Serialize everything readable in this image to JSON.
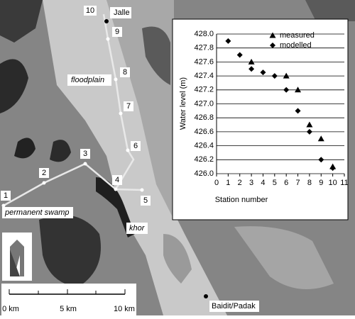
{
  "map": {
    "stations": [
      "1",
      "2",
      "3",
      "4",
      "5",
      "6",
      "7",
      "8",
      "9",
      "10"
    ],
    "places": [
      "Jalle",
      "floodplain",
      "permanent swamp",
      "khor",
      "Baidit/Padak"
    ],
    "scale": [
      "0 km",
      "5 km",
      "10 km"
    ]
  },
  "chart_data": {
    "type": "scatter",
    "x_label": "Station number",
    "y_label": "Water level (m)",
    "series": [
      {
        "name": "measured",
        "marker": "triangle",
        "color": "#000000",
        "x": [
          3,
          6,
          7,
          8,
          9,
          10
        ],
        "values": [
          427.6,
          427.4,
          427.2,
          426.7,
          426.5,
          426.1
        ]
      },
      {
        "name": "modelled",
        "marker": "diamond",
        "color": "#000000",
        "x": [
          1,
          2,
          3,
          4,
          5,
          6,
          7,
          8,
          9,
          10
        ],
        "values": [
          427.9,
          427.7,
          427.5,
          427.45,
          427.4,
          427.2,
          426.9,
          426.6,
          426.2,
          426.08
        ]
      }
    ],
    "xlim": [
      0,
      11
    ],
    "xticks": [
      0,
      1,
      2,
      3,
      4,
      5,
      6,
      7,
      8,
      9,
      10,
      11
    ],
    "ylim": [
      426.0,
      428.0
    ],
    "yticks": [
      {
        "value": 426.0,
        "label": "426.0"
      },
      {
        "value": 426.2,
        "label": "426.2"
      },
      {
        "value": 426.4,
        "label": "426.4"
      },
      {
        "value": 426.6,
        "label": "426.6"
      },
      {
        "value": 426.8,
        "label": "426.8"
      },
      {
        "value": 427.0,
        "label": "427.0"
      },
      {
        "value": 427.2,
        "label": "427.2"
      },
      {
        "value": 427.4,
        "label": "427.4"
      },
      {
        "value": 427.6,
        "label": "427.6"
      },
      {
        "value": 427.8,
        "label": "427.8"
      },
      {
        "value": 428.0,
        "label": "428.0"
      }
    ],
    "grid": true
  }
}
